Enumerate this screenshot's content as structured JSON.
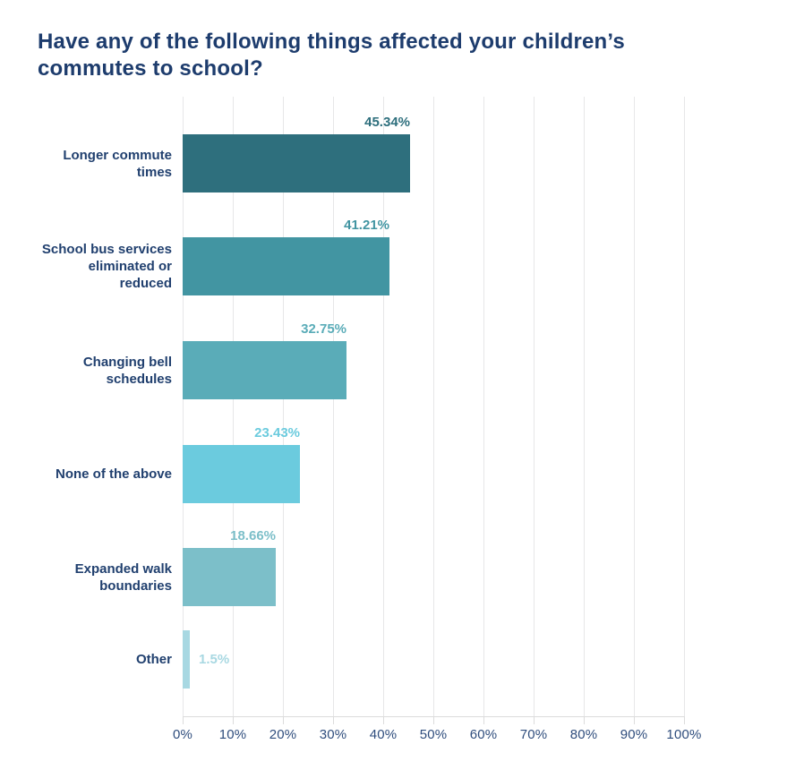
{
  "chart_data": {
    "type": "bar",
    "orientation": "horizontal",
    "title": "Have any of the following things affected your children’s commutes to school?",
    "categories": [
      "Longer commute times",
      "School bus services eliminated or reduced",
      "Changing bell schedules",
      "None of the above",
      "Expanded walk boundaries",
      "Other"
    ],
    "values": [
      45.34,
      41.21,
      32.75,
      23.43,
      18.66,
      1.5
    ],
    "value_labels": [
      "45.34%",
      "41.21%",
      "32.75%",
      "23.43%",
      "18.66%",
      "1.5%"
    ],
    "bar_colors": [
      "#2e6f7d",
      "#4295a2",
      "#5aacb8",
      "#6bcbde",
      "#7cbfc9",
      "#a8d8e2"
    ],
    "x_ticks": [
      "0%",
      "10%",
      "20%",
      "30%",
      "40%",
      "50%",
      "60%",
      "70%",
      "80%",
      "90%",
      "100%"
    ],
    "xlim": [
      0,
      100
    ],
    "grid": true,
    "legend": false,
    "xlabel": "",
    "ylabel": ""
  },
  "colors": {
    "title_text": "#1d3c6d",
    "category_text": "#21406f",
    "tick_text": "#2f4d7d",
    "gridline": "#e7e7e8",
    "axis_line": "#dcdcdc",
    "background": "#ffffff"
  }
}
